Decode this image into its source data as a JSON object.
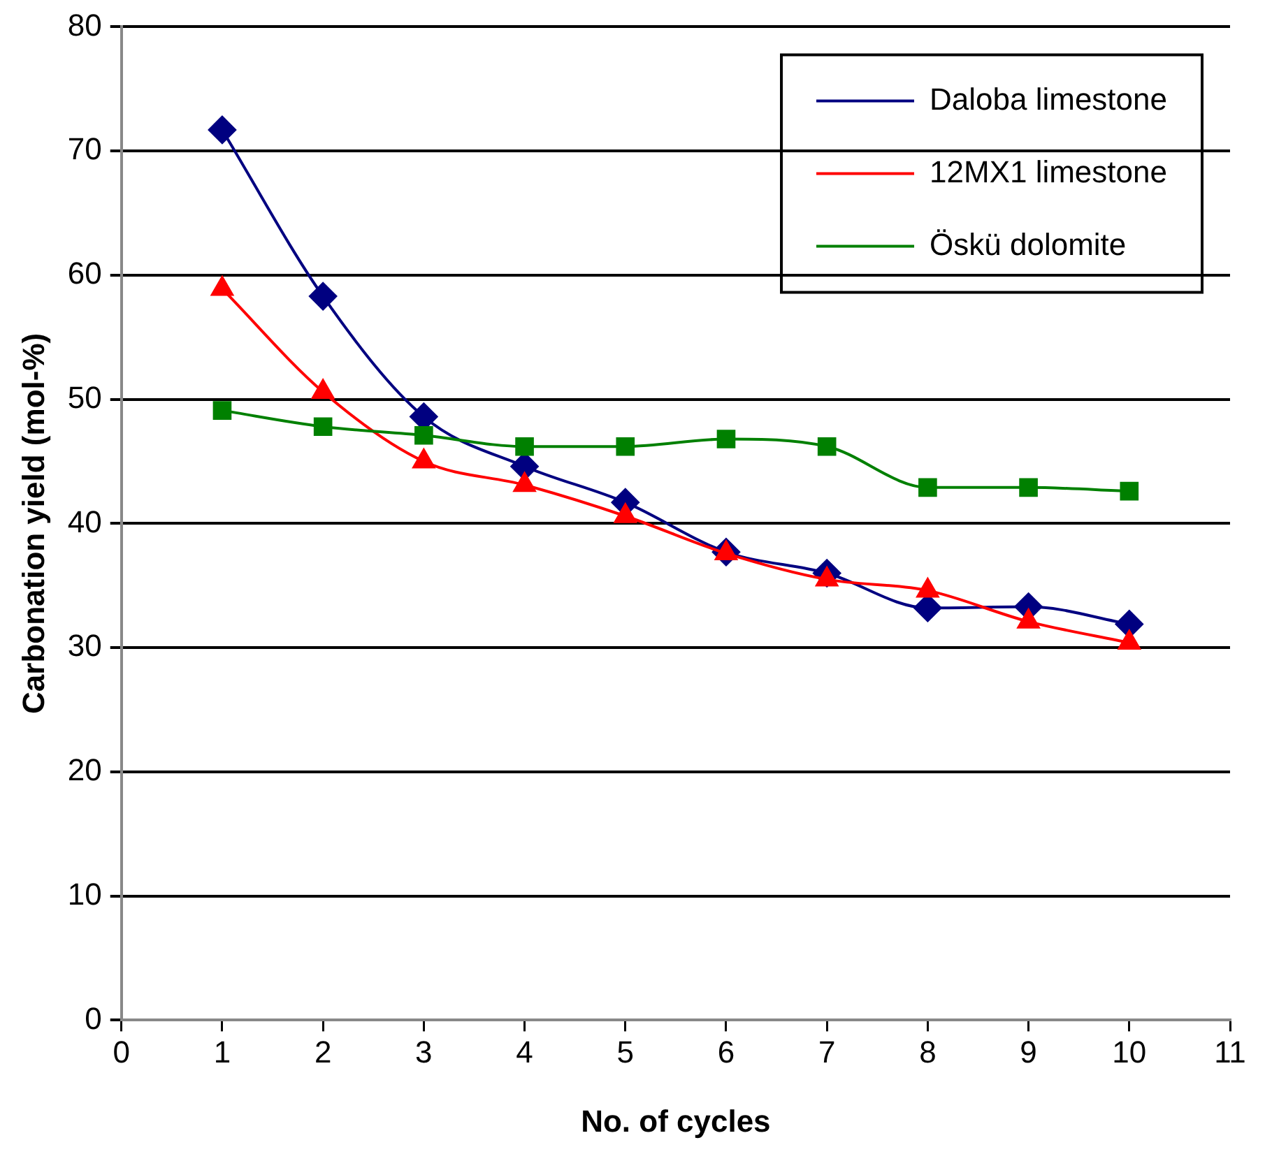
{
  "chart_data": {
    "type": "line",
    "xlabel": "No. of cycles",
    "ylabel": "Carbonation yield (mol-%)",
    "x": [
      1,
      2,
      3,
      4,
      5,
      6,
      7,
      8,
      9,
      10
    ],
    "xlim": [
      0,
      11
    ],
    "xticks": [
      0,
      1,
      2,
      3,
      4,
      5,
      6,
      7,
      8,
      9,
      10,
      11
    ],
    "ylim": [
      0,
      80
    ],
    "yticks": [
      0,
      10,
      20,
      30,
      40,
      50,
      60,
      70,
      80
    ],
    "grid": "y",
    "legend": "top right",
    "series": [
      {
        "name": "Daloba limestone",
        "color": "#000080",
        "marker": "diamond",
        "values": [
          71.7,
          58.3,
          48.6,
          44.6,
          41.7,
          37.7,
          36.0,
          33.2,
          33.3,
          31.9
        ]
      },
      {
        "name": "12MX1 limestone",
        "color": "#ff0000",
        "marker": "triangle",
        "values": [
          58.9,
          50.6,
          45.0,
          43.1,
          40.6,
          37.6,
          35.5,
          34.6,
          32.1,
          30.4
        ]
      },
      {
        "name": "Öskü dolomite",
        "color": "#008000",
        "marker": "square",
        "values": [
          49.1,
          47.8,
          47.1,
          46.2,
          46.2,
          46.8,
          46.2,
          42.9,
          42.9,
          42.6
        ]
      }
    ]
  }
}
